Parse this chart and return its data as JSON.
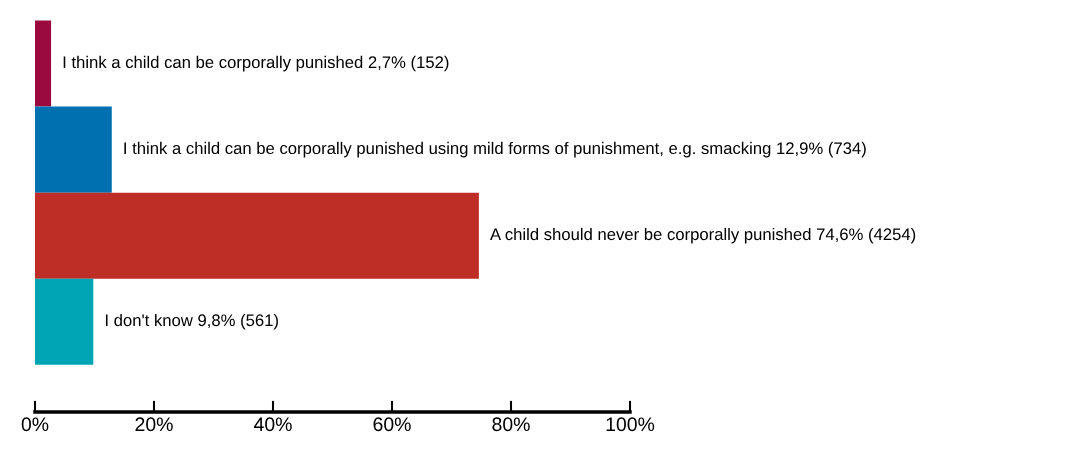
{
  "chart_data": {
    "type": "bar",
    "orientation": "horizontal",
    "categories": [
      null,
      null,
      null,
      null
    ],
    "values": [
      2.7,
      12.9,
      74.6,
      9.8
    ],
    "colors": [
      "#9b0a3e",
      "#0070b0",
      "#be2d26",
      "#00a5b5"
    ],
    "value_labels": [
      "I think a child can be corporally punished 2,7% (152)",
      "I think a child can be corporally punished using mild forms of punishment, e.g. smacking 12,9% (734)",
      "A child should never be corporally punished 74,6% (4254)",
      "I don't know 9,8% (561)"
    ],
    "xlim": [
      0,
      100
    ],
    "xticks": [
      {
        "value": 0,
        "label": "0%"
      },
      {
        "value": 20,
        "label": "20%"
      },
      {
        "value": 40,
        "label": "40%"
      },
      {
        "value": 60,
        "label": "60%"
      },
      {
        "value": 80,
        "label": "80%"
      },
      {
        "value": 100,
        "label": "100%"
      }
    ],
    "tick_labels": "x",
    "grid": false,
    "legend": false
  }
}
